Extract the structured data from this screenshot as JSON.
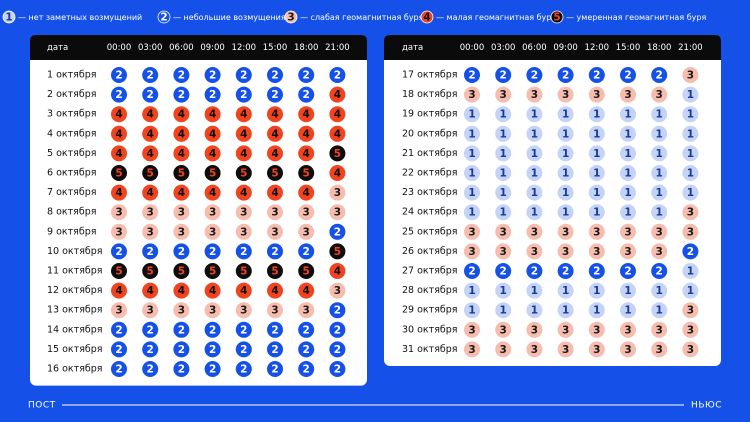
{
  "legend": [
    {
      "level": 1,
      "label": "— нет заметных возмущений",
      "fill": "#c5d3f6",
      "ink": "#173a9e"
    },
    {
      "level": 2,
      "label": "— небольшие возмущения",
      "fill": "#1550e8",
      "ink": "#ffffff"
    },
    {
      "level": 3,
      "label": "— слабая геомагнитная буря",
      "fill": "#f6bcae",
      "ink": "#1a1a1a"
    },
    {
      "level": 4,
      "label": "— малая геомагнитная буря",
      "fill": "#f2431f",
      "ink": "#111111"
    },
    {
      "level": 5,
      "label": "— умеренная геомагнитная буря",
      "fill": "#0d0d0d",
      "ink": "#f2431f"
    }
  ],
  "tables": [
    {
      "header": {
        "date": "дата",
        "times": [
          "00:00",
          "03:00",
          "06:00",
          "09:00",
          "12:00",
          "15:00",
          "18:00",
          "21:00"
        ]
      },
      "rows": [
        {
          "date": "1 октября",
          "values": [
            2,
            2,
            2,
            2,
            2,
            2,
            2,
            2
          ]
        },
        {
          "date": "2 октября",
          "values": [
            2,
            2,
            2,
            2,
            2,
            2,
            2,
            4
          ]
        },
        {
          "date": "3 октября",
          "values": [
            4,
            4,
            4,
            4,
            4,
            4,
            4,
            4
          ]
        },
        {
          "date": "4 октября",
          "values": [
            4,
            4,
            4,
            4,
            4,
            4,
            4,
            4
          ]
        },
        {
          "date": "5 октября",
          "values": [
            4,
            4,
            4,
            4,
            4,
            4,
            4,
            5
          ]
        },
        {
          "date": "6 октября",
          "values": [
            5,
            5,
            5,
            5,
            5,
            5,
            5,
            4
          ]
        },
        {
          "date": "7 октября",
          "values": [
            4,
            4,
            4,
            4,
            4,
            4,
            4,
            3
          ]
        },
        {
          "date": "8 октября",
          "values": [
            3,
            3,
            3,
            3,
            3,
            3,
            3,
            3
          ]
        },
        {
          "date": "9 октября",
          "values": [
            3,
            3,
            3,
            3,
            3,
            3,
            3,
            2
          ]
        },
        {
          "date": "10 октября",
          "values": [
            2,
            2,
            2,
            2,
            2,
            2,
            2,
            5
          ]
        },
        {
          "date": "11 октября",
          "values": [
            5,
            5,
            5,
            5,
            5,
            5,
            5,
            4
          ]
        },
        {
          "date": "12 октября",
          "values": [
            4,
            4,
            4,
            4,
            4,
            4,
            4,
            3
          ]
        },
        {
          "date": "13 октября",
          "values": [
            3,
            3,
            3,
            3,
            3,
            3,
            3,
            2
          ]
        },
        {
          "date": "14 октября",
          "values": [
            2,
            2,
            2,
            2,
            2,
            2,
            2,
            2
          ]
        },
        {
          "date": "15 октября",
          "values": [
            2,
            2,
            2,
            2,
            2,
            2,
            2,
            2
          ]
        },
        {
          "date": "16 октября",
          "values": [
            2,
            2,
            2,
            2,
            2,
            2,
            2,
            2
          ]
        }
      ]
    },
    {
      "header": {
        "date": "дата",
        "times": [
          "00:00",
          "03:00",
          "06:00",
          "09:00",
          "12:00",
          "15:00",
          "18:00",
          "21:00"
        ]
      },
      "rows": [
        {
          "date": "17 октября",
          "values": [
            2,
            2,
            2,
            2,
            2,
            2,
            2,
            3
          ]
        },
        {
          "date": "18 октября",
          "values": [
            3,
            3,
            3,
            3,
            3,
            3,
            3,
            1
          ]
        },
        {
          "date": "19 октября",
          "values": [
            1,
            1,
            1,
            1,
            1,
            1,
            1,
            1
          ]
        },
        {
          "date": "20 октября",
          "values": [
            1,
            1,
            1,
            1,
            1,
            1,
            1,
            1
          ]
        },
        {
          "date": "21 октября",
          "values": [
            1,
            1,
            1,
            1,
            1,
            1,
            1,
            1
          ]
        },
        {
          "date": "22 октября",
          "values": [
            1,
            1,
            1,
            1,
            1,
            1,
            1,
            1
          ]
        },
        {
          "date": "23 октября",
          "values": [
            1,
            1,
            1,
            1,
            1,
            1,
            1,
            1
          ]
        },
        {
          "date": "24 октября",
          "values": [
            1,
            1,
            1,
            1,
            1,
            1,
            1,
            3
          ]
        },
        {
          "date": "25 октября",
          "values": [
            3,
            3,
            3,
            3,
            3,
            3,
            3,
            3
          ]
        },
        {
          "date": "26 октября",
          "values": [
            3,
            3,
            3,
            3,
            3,
            3,
            3,
            2
          ]
        },
        {
          "date": "27 октября",
          "values": [
            2,
            2,
            2,
            2,
            2,
            2,
            2,
            1
          ]
        },
        {
          "date": "28 октября",
          "values": [
            1,
            1,
            1,
            1,
            1,
            1,
            1,
            1
          ]
        },
        {
          "date": "29 октября",
          "values": [
            1,
            1,
            1,
            1,
            1,
            1,
            1,
            3
          ]
        },
        {
          "date": "30 октября",
          "values": [
            3,
            3,
            3,
            3,
            3,
            3,
            3,
            3
          ]
        },
        {
          "date": "31 октября",
          "values": [
            3,
            3,
            3,
            3,
            3,
            3,
            3,
            3
          ]
        }
      ]
    }
  ],
  "footer": {
    "left": "ПОСТ",
    "right": "НЬЮС"
  }
}
